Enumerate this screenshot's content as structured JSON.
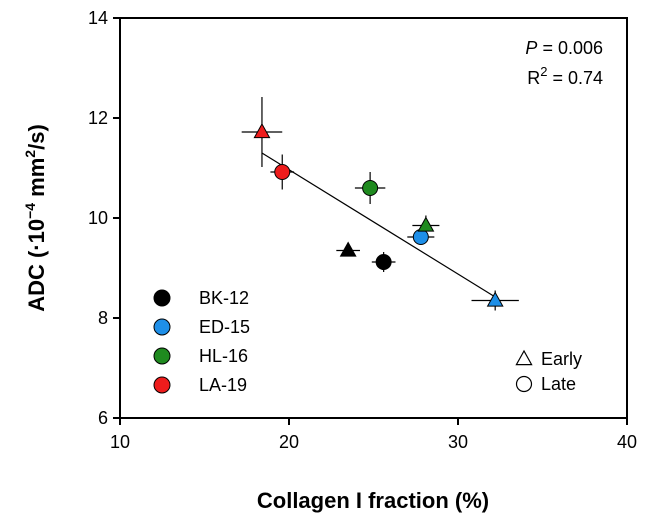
{
  "chart_data": {
    "type": "scatter",
    "xlabel": "Collagen I fraction (%)",
    "ylabel_main": "ADC (·10",
    "ylabel_exp1": "−4",
    "ylabel_mid": " mm",
    "ylabel_exp2": "2",
    "ylabel_end": "/s)",
    "xlim": [
      10,
      40
    ],
    "ylim": [
      6,
      14
    ],
    "xticks": [
      10,
      20,
      30,
      40
    ],
    "yticks": [
      6,
      8,
      10,
      12,
      14
    ],
    "grid": false,
    "stats": {
      "p_symbol": "P",
      "p_value": " = 0.006",
      "r_symbol": "R",
      "r_exp": "2",
      "r_value": " = 0.74"
    },
    "series": [
      {
        "name": "BK-12",
        "color": "#000000",
        "points": [
          {
            "phase": "Early",
            "x": 23.5,
            "y": 9.35,
            "xerr": 0.7,
            "yerr": 0.12
          },
          {
            "phase": "Late",
            "x": 25.6,
            "y": 9.12,
            "xerr": 0.7,
            "yerr": 0.2
          }
        ]
      },
      {
        "name": "ED-15",
        "color": "#1e8fe8",
        "points": [
          {
            "phase": "Early",
            "x": 32.2,
            "y": 8.35,
            "xerr": 1.4,
            "yerr": 0.2
          },
          {
            "phase": "Late",
            "x": 27.8,
            "y": 9.62,
            "xerr": 0.8,
            "yerr": 0.15
          }
        ]
      },
      {
        "name": "HL-16",
        "color": "#1f8a1f",
        "points": [
          {
            "phase": "Early",
            "x": 28.1,
            "y": 9.85,
            "xerr": 0.8,
            "yerr": 0.2
          },
          {
            "phase": "Late",
            "x": 24.8,
            "y": 10.6,
            "xerr": 0.9,
            "yerr": 0.32
          }
        ]
      },
      {
        "name": "LA-19",
        "color": "#ee1c1c",
        "points": [
          {
            "phase": "Early",
            "x": 18.4,
            "y": 11.72,
            "xerr": 1.2,
            "yerr": 0.7
          },
          {
            "phase": "Late",
            "x": 19.6,
            "y": 10.92,
            "xerr": 0.7,
            "yerr": 0.35
          }
        ]
      }
    ],
    "fit_line": {
      "x": [
        18.4,
        32.2
      ],
      "y": [
        11.3,
        8.42
      ]
    },
    "legend_series_placement": "bottom-left",
    "legend_phase": [
      {
        "label": "Early",
        "marker": "triangle"
      },
      {
        "label": "Late",
        "marker": "circle"
      }
    ],
    "legend_phase_placement": "bottom-right"
  }
}
